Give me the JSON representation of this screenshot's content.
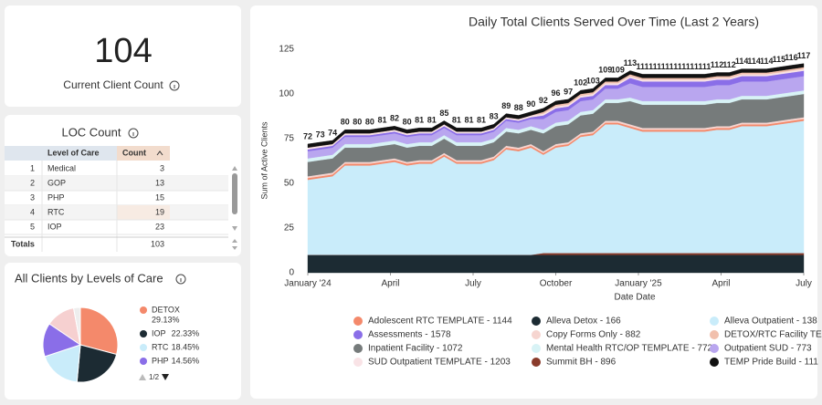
{
  "kpi": {
    "value": 104,
    "label": "Current Client Count"
  },
  "table": {
    "title": "LOC Count",
    "columns": [
      "Level of Care",
      "Count"
    ],
    "rows": [
      [
        1,
        "Medical",
        3
      ],
      [
        2,
        "GOP",
        13
      ],
      [
        3,
        "PHP",
        15
      ],
      [
        4,
        "RTC",
        19
      ],
      [
        5,
        "IOP",
        23
      ]
    ],
    "totals_label": "Totals",
    "total": 103
  },
  "chart_data": [
    {
      "type": "stacked_area",
      "title": "Daily Total Clients Served Over Time (Last 2 Years)",
      "xlabel": "Date Date",
      "ylabel": "Sum of Active Clients",
      "x": [
        0,
        0.45,
        0.9,
        1.35,
        1.8,
        2.25,
        2.7,
        3.15,
        3.6,
        4.05,
        4.5,
        4.95,
        5.4,
        5.85,
        6.3,
        6.75,
        7.2,
        7.65,
        8.1,
        8.55,
        9,
        9.45,
        9.9,
        10.35,
        10.8,
        11.25,
        11.7,
        12.15,
        12.6,
        13.05,
        13.5,
        13.95,
        14.4,
        14.85,
        15.3,
        15.75,
        16.2,
        16.65,
        17.1,
        17.55,
        18
      ],
      "xlim": [
        0,
        18
      ],
      "xticks": [
        {
          "value": 0,
          "label": "January '24"
        },
        {
          "value": 3,
          "label": "April"
        },
        {
          "value": 6,
          "label": "July"
        },
        {
          "value": 9,
          "label": "October"
        },
        {
          "value": 12,
          "label": "January '25"
        },
        {
          "value": 15,
          "label": "April"
        },
        {
          "value": 18,
          "label": "July"
        }
      ],
      "ylim": [
        0,
        125
      ],
      "yticks": [
        0,
        25,
        50,
        75,
        100,
        125
      ],
      "grid": false,
      "total_labels": [
        72,
        73,
        74,
        80,
        80,
        80,
        81,
        82,
        80,
        81,
        81,
        85,
        81,
        81,
        81,
        83,
        89,
        88,
        90,
        92,
        96,
        97,
        102,
        103,
        109,
        109,
        113,
        111,
        111,
        111,
        111,
        111,
        111,
        112,
        112,
        114,
        114,
        114,
        115,
        116,
        117
      ],
      "series": [
        {
          "name": "Adolescent RTC TEMPLATE - 1144",
          "color": "#f4896b",
          "values": [
            1,
            1,
            1,
            1,
            1,
            1,
            1,
            1,
            1,
            1,
            1,
            1,
            1,
            1,
            1,
            1,
            1,
            1,
            1,
            1,
            1,
            1,
            1,
            1,
            1,
            1,
            1,
            1,
            1,
            1,
            1,
            1,
            1,
            1,
            1,
            1,
            1,
            1,
            1,
            1,
            1
          ]
        },
        {
          "name": "Alleva Detox - 166",
          "color": "#1c2b33",
          "values": [
            10,
            10,
            10,
            10,
            10,
            10,
            10,
            10,
            10,
            10,
            10,
            10,
            10,
            10,
            10,
            10,
            10,
            10,
            10,
            10,
            10,
            10,
            10,
            10,
            10,
            10,
            10,
            10,
            10,
            10,
            10,
            10,
            10,
            10,
            10,
            10,
            10,
            10,
            10,
            10,
            10
          ]
        },
        {
          "name": "Alleva Outpatient - 138",
          "color": "#c9ecfa",
          "values": [
            42,
            43,
            44,
            50,
            50,
            50,
            51,
            52,
            50,
            51,
            51,
            55,
            51,
            51,
            51,
            53,
            59,
            58,
            60,
            55,
            59,
            60,
            65,
            66,
            72,
            72,
            70,
            68,
            68,
            68,
            68,
            68,
            68,
            69,
            69,
            71,
            71,
            71,
            72,
            73,
            74
          ]
        },
        {
          "name": "Assessments - 1578",
          "color": "#8a6ee8",
          "values": [
            1,
            1,
            1,
            1,
            1,
            1,
            1,
            1,
            1,
            1,
            1,
            1,
            1,
            1,
            1,
            1,
            1,
            1,
            1,
            2,
            2,
            2,
            2,
            2,
            2,
            2,
            3,
            3,
            3,
            3,
            3,
            3,
            3,
            3,
            3,
            3,
            3,
            3,
            3,
            3,
            3
          ]
        },
        {
          "name": "Copy Forms Only - 882",
          "color": "#f6d5d0",
          "values": [
            1,
            1,
            1,
            1,
            1,
            1,
            1,
            1,
            1,
            1,
            1,
            1,
            1,
            1,
            1,
            1,
            1,
            1,
            1,
            1,
            1,
            1,
            1,
            1,
            1,
            1,
            1,
            1,
            1,
            1,
            1,
            1,
            1,
            1,
            1,
            1,
            1,
            1,
            1,
            1,
            1
          ]
        },
        {
          "name": "DETOX/RTC Facility TE",
          "color": "#f1c0ad",
          "values": [
            0,
            0,
            0,
            0,
            0,
            0,
            0,
            0,
            0,
            0,
            0,
            0,
            0,
            0,
            0,
            0,
            0,
            0,
            0,
            1,
            1,
            1,
            1,
            1,
            1,
            1,
            1,
            1,
            1,
            1,
            1,
            1,
            1,
            1,
            1,
            1,
            1,
            1,
            1,
            1,
            1
          ]
        },
        {
          "name": "Inpatient Facility - 1072",
          "color": "#767b7b",
          "values": [
            8,
            8,
            8,
            8,
            8,
            8,
            8,
            8,
            8,
            8,
            8,
            8,
            8,
            8,
            8,
            8,
            8,
            8,
            8,
            10,
            10,
            10,
            10,
            10,
            10,
            10,
            13,
            13,
            13,
            13,
            13,
            13,
            13,
            13,
            13,
            13,
            13,
            13,
            13,
            13,
            13
          ]
        },
        {
          "name": "Mental Health RTC/OP TEMPLATE - 772",
          "color": "#d8f3f6",
          "values": [
            2,
            2,
            2,
            2,
            2,
            2,
            2,
            2,
            2,
            2,
            2,
            2,
            2,
            2,
            2,
            2,
            2,
            2,
            2,
            2,
            2,
            2,
            2,
            2,
            2,
            2,
            2,
            2,
            2,
            2,
            2,
            2,
            2,
            2,
            2,
            2,
            2,
            2,
            2,
            2,
            2
          ]
        },
        {
          "name": "Outpatient SUD - 773",
          "color": "#b9a6ef",
          "values": [
            4,
            4,
            4,
            4,
            4,
            4,
            4,
            4,
            4,
            4,
            4,
            4,
            4,
            4,
            4,
            4,
            4,
            4,
            4,
            6,
            6,
            6,
            6,
            6,
            6,
            6,
            8,
            8,
            8,
            8,
            8,
            8,
            8,
            8,
            8,
            8,
            8,
            8,
            8,
            8,
            8
          ]
        },
        {
          "name": "SUD Outpatient TEMPLATE - 1203",
          "color": "#f9e3e6",
          "values": [
            1,
            1,
            1,
            1,
            1,
            1,
            1,
            1,
            1,
            1,
            1,
            1,
            1,
            1,
            1,
            1,
            1,
            1,
            1,
            1,
            1,
            1,
            1,
            1,
            1,
            1,
            1,
            1,
            1,
            1,
            1,
            1,
            1,
            1,
            1,
            1,
            1,
            1,
            1,
            1,
            1
          ]
        },
        {
          "name": "Summit BH - 896",
          "color": "#8a3b2b",
          "values": [
            0,
            0,
            0,
            0,
            0,
            0,
            0,
            0,
            0,
            0,
            0,
            0,
            0,
            0,
            0,
            0,
            0,
            0,
            0,
            1,
            1,
            1,
            1,
            1,
            1,
            1,
            1,
            1,
            1,
            1,
            1,
            1,
            1,
            1,
            1,
            1,
            1,
            1,
            1,
            1,
            1
          ]
        },
        {
          "name": "TEMP Pride Build - 111",
          "color": "#111111",
          "values": [
            2,
            2,
            2,
            2,
            2,
            2,
            2,
            2,
            2,
            2,
            2,
            2,
            2,
            2,
            2,
            2,
            2,
            2,
            2,
            2,
            2,
            2,
            2,
            2,
            2,
            2,
            2,
            2,
            2,
            2,
            2,
            2,
            2,
            2,
            2,
            2,
            2,
            2,
            2,
            2,
            2
          ]
        }
      ]
    },
    {
      "type": "pie",
      "title": "All Clients by Levels of Care",
      "categories": [
        "DETOX",
        "IOP",
        "RTC",
        "PHP",
        null,
        null
      ],
      "values": [
        29.13,
        22.33,
        18.45,
        14.56,
        12.62,
        2.91
      ],
      "value_labels": [
        "29.13%",
        "22.33%",
        "18.45%",
        "14.56%",
        null,
        null
      ],
      "colors": [
        "#f4896b",
        "#1c2b33",
        "#c9ecfa",
        "#8a6ee8",
        "#f6d0d0",
        "#eeeeee"
      ],
      "pager": "1/2"
    }
  ]
}
